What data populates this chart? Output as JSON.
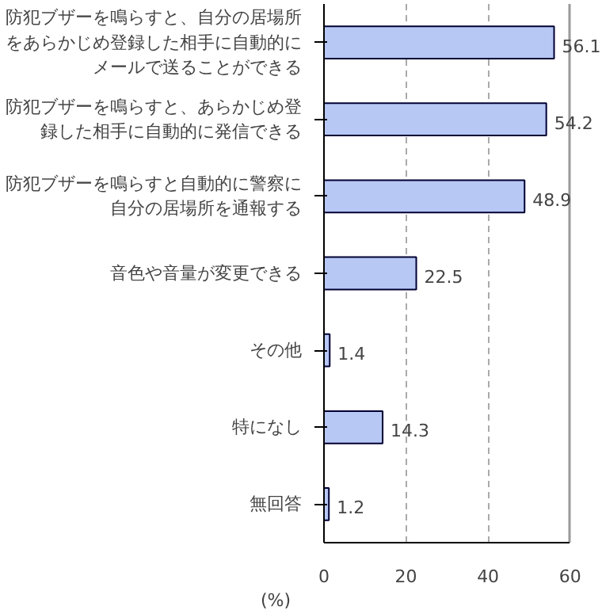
{
  "chart_data": {
    "type": "bar",
    "orientation": "horizontal",
    "xlabel": "(%)",
    "categories": [
      "防犯ブザーを鳴らすと、自分の居場所をあらかじめ登録した相手に自動的にメールで送ることができる",
      "防犯ブザーを鳴らすと、あらかじめ登録した相手に自動的に発信できる",
      "防犯ブザーを鳴らすと自動的に警察に自分の居場所を通報する",
      "音色や音量が変更できる",
      "その他",
      "特になし",
      "無回答"
    ],
    "values": [
      56.1,
      54.2,
      48.9,
      22.5,
      1.4,
      14.3,
      1.2
    ],
    "color": "#b8c8f4",
    "xlim": [
      0,
      60
    ],
    "xticks": [
      0,
      20,
      40,
      60
    ],
    "grid": "x",
    "data_labels": true
  }
}
